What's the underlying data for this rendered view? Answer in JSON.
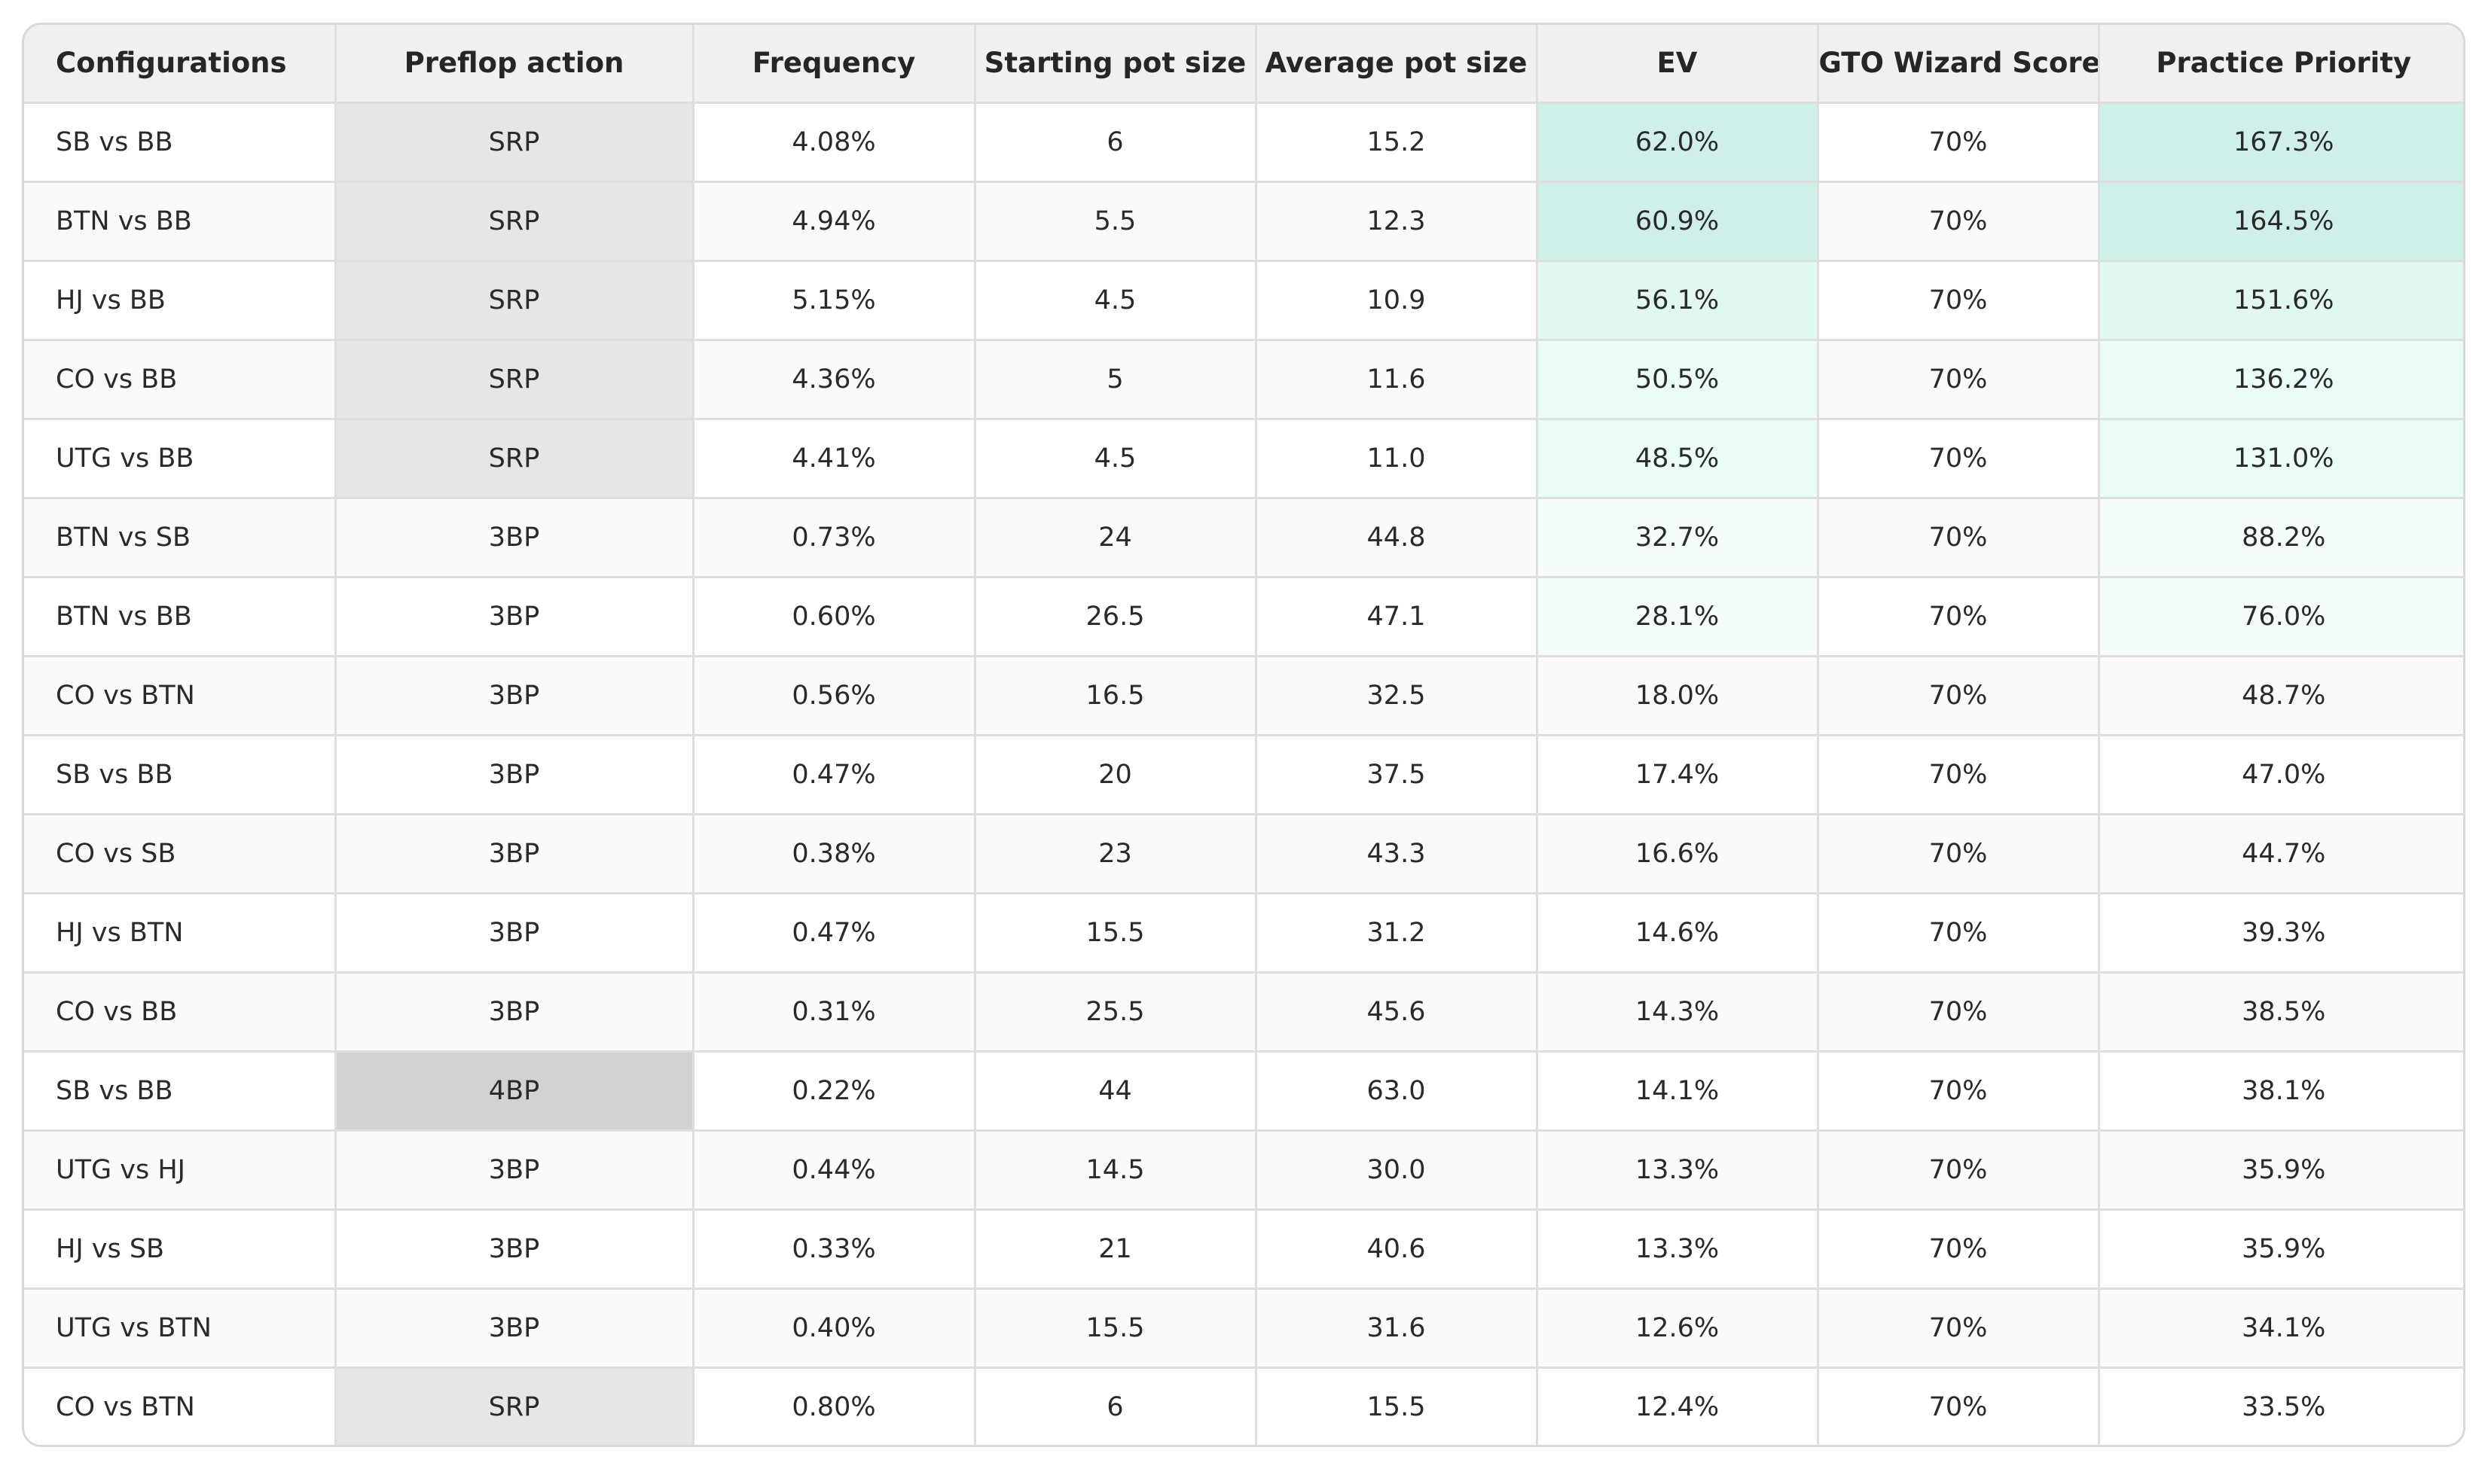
{
  "chart_data": {
    "type": "table",
    "columns": [
      "Configurations",
      "Preflop action",
      "Frequency",
      "Starting pot size",
      "Average pot size",
      "EV",
      "GTO Wizard Score",
      "Practice Priority"
    ],
    "rows": [
      [
        "SB vs BB",
        "SRP",
        "4.08%",
        "6",
        "15.2",
        "62.0%",
        "70%",
        "167.3%"
      ],
      [
        "BTN vs BB",
        "SRP",
        "4.94%",
        "5.5",
        "12.3",
        "60.9%",
        "70%",
        "164.5%"
      ],
      [
        "HJ vs BB",
        "SRP",
        "5.15%",
        "4.5",
        "10.9",
        "56.1%",
        "70%",
        "151.6%"
      ],
      [
        "CO vs BB",
        "SRP",
        "4.36%",
        "5",
        "11.6",
        "50.5%",
        "70%",
        "136.2%"
      ],
      [
        "UTG vs BB",
        "SRP",
        "4.41%",
        "4.5",
        "11.0",
        "48.5%",
        "70%",
        "131.0%"
      ],
      [
        "BTN vs SB",
        "3BP",
        "0.73%",
        "24",
        "44.8",
        "32.7%",
        "70%",
        "88.2%"
      ],
      [
        "BTN vs BB",
        "3BP",
        "0.60%",
        "26.5",
        "47.1",
        "28.1%",
        "70%",
        "76.0%"
      ],
      [
        "CO vs BTN",
        "3BP",
        "0.56%",
        "16.5",
        "32.5",
        "18.0%",
        "70%",
        "48.7%"
      ],
      [
        "SB vs BB",
        "3BP",
        "0.47%",
        "20",
        "37.5",
        "17.4%",
        "70%",
        "47.0%"
      ],
      [
        "CO vs SB",
        "3BP",
        "0.38%",
        "23",
        "43.3",
        "16.6%",
        "70%",
        "44.7%"
      ],
      [
        "HJ vs BTN",
        "3BP",
        "0.47%",
        "15.5",
        "31.2",
        "14.6%",
        "70%",
        "39.3%"
      ],
      [
        "CO vs BB",
        "3BP",
        "0.31%",
        "25.5",
        "45.6",
        "14.3%",
        "70%",
        "38.5%"
      ],
      [
        "SB vs BB",
        "4BP",
        "0.22%",
        "44",
        "63.0",
        "14.1%",
        "70%",
        "38.1%"
      ],
      [
        "UTG vs HJ",
        "3BP",
        "0.44%",
        "14.5",
        "30.0",
        "13.3%",
        "70%",
        "35.9%"
      ],
      [
        "HJ vs SB",
        "3BP",
        "0.33%",
        "21",
        "40.6",
        "13.3%",
        "70%",
        "35.9%"
      ],
      [
        "UTG vs BTN",
        "3BP",
        "0.40%",
        "15.5",
        "31.6",
        "12.6%",
        "70%",
        "34.1%"
      ],
      [
        "CO vs BTN",
        "SRP",
        "0.80%",
        "6",
        "15.5",
        "12.4%",
        "70%",
        "33.5%"
      ]
    ],
    "highlight_colors": {
      "teal_strong": "#cff0e8",
      "teal_medium": "#e1f7f1",
      "teal_light": "#e9fcf7",
      "teal_faint": "#f4fdfa",
      "preflop_srp": "#e6e6e6",
      "preflop_4bp": "#d2d2d2",
      "header_bg": "#f0f0f1"
    }
  }
}
